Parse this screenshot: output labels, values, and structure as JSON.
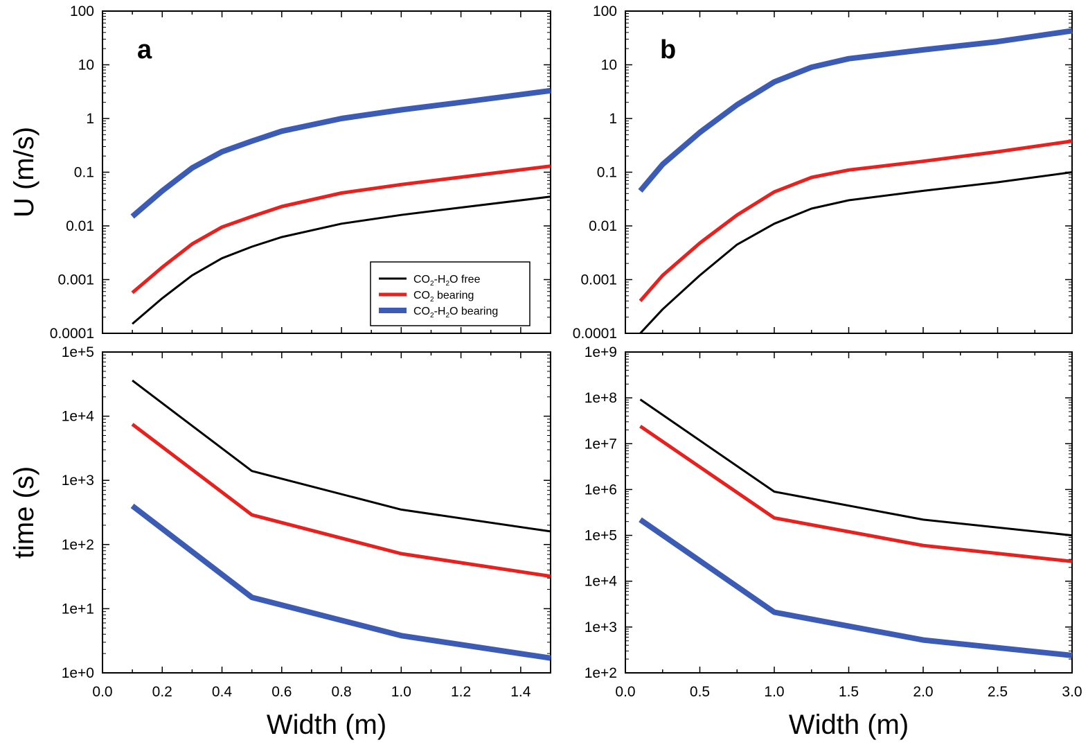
{
  "series_styles": {
    "free": {
      "label_parts": [
        [
          "CO",
          "2",
          "-H",
          "2",
          "O free"
        ]
      ],
      "color": "#000000",
      "width": 3
    },
    "co2": {
      "label_parts": [
        [
          "CO",
          "2",
          " bearing"
        ]
      ],
      "color": "#e8201e",
      "width": 5
    },
    "co2h2o": {
      "label_parts": [
        [
          "CO",
          "2",
          "-H",
          "2",
          "O bearing"
        ]
      ],
      "color": "#3b5bb5",
      "width": 8
    }
  },
  "legend": [
    {
      "key": "free",
      "text": [
        "CO",
        "2",
        "-H",
        "2",
        "O free"
      ]
    },
    {
      "key": "co2",
      "text": [
        "CO",
        "2",
        " bearing"
      ]
    },
    {
      "key": "co2h2o",
      "text": [
        "CO",
        "2",
        "-H",
        "2",
        "O bearing"
      ]
    }
  ],
  "chart_data": [
    {
      "panel": "a",
      "row": "top",
      "type": "line",
      "panel_letter": "a",
      "ylabel": "U (m/s)",
      "xlabel": "",
      "xlim": [
        0.0,
        1.5
      ],
      "ylim": [
        0.0001,
        100
      ],
      "yscale": "log",
      "xticks": [
        "0.0",
        "0.2",
        "0.4",
        "0.6",
        "0.8",
        "1.0",
        "1.2",
        "1.4"
      ],
      "yticks": [
        "0.0001",
        "0.001",
        "0.01",
        "0.1",
        "1",
        "10",
        "100"
      ],
      "series": [
        {
          "key": "free",
          "x": [
            0.1,
            0.2,
            0.3,
            0.4,
            0.5,
            0.6,
            0.8,
            1.0,
            1.2,
            1.5
          ],
          "y": [
            0.00015,
            0.00045,
            0.0012,
            0.0025,
            0.0041,
            0.0062,
            0.011,
            0.016,
            0.022,
            0.035
          ]
        },
        {
          "key": "co2",
          "x": [
            0.1,
            0.2,
            0.3,
            0.4,
            0.5,
            0.6,
            0.8,
            1.0,
            1.2,
            1.5
          ],
          "y": [
            0.00057,
            0.0017,
            0.0046,
            0.0095,
            0.015,
            0.023,
            0.041,
            0.059,
            0.081,
            0.13
          ]
        },
        {
          "key": "co2h2o",
          "x": [
            0.1,
            0.2,
            0.3,
            0.4,
            0.5,
            0.6,
            0.8,
            1.0,
            1.2,
            1.5
          ],
          "y": [
            0.015,
            0.045,
            0.12,
            0.24,
            0.38,
            0.58,
            1.0,
            1.45,
            2.0,
            3.3
          ]
        }
      ]
    },
    {
      "panel": "b",
      "row": "top",
      "type": "line",
      "panel_letter": "b",
      "ylabel": "",
      "xlabel": "",
      "xlim": [
        0.0,
        3.0
      ],
      "ylim": [
        0.0001,
        100
      ],
      "yscale": "log",
      "xticks": [
        "0.0",
        "0.5",
        "1.0",
        "1.5",
        "2.0",
        "2.5",
        "3.0"
      ],
      "yticks": [
        "0.0001",
        "0.001",
        "0.01",
        "0.1",
        "1",
        "10",
        "100"
      ],
      "series": [
        {
          "key": "free",
          "x": [
            0.1,
            0.25,
            0.5,
            0.75,
            1.0,
            1.25,
            1.5,
            2.0,
            2.5,
            3.0
          ],
          "y": [
            0.0001,
            0.00028,
            0.0012,
            0.0045,
            0.011,
            0.021,
            0.03,
            0.045,
            0.065,
            0.1
          ]
        },
        {
          "key": "co2",
          "x": [
            0.1,
            0.25,
            0.5,
            0.75,
            1.0,
            1.25,
            1.5,
            2.0,
            2.5,
            3.0
          ],
          "y": [
            0.0004,
            0.0012,
            0.0048,
            0.016,
            0.043,
            0.08,
            0.11,
            0.16,
            0.24,
            0.38
          ]
        },
        {
          "key": "co2h2o",
          "x": [
            0.1,
            0.25,
            0.5,
            0.75,
            1.0,
            1.25,
            1.5,
            2.0,
            2.5,
            3.0
          ],
          "y": [
            0.045,
            0.14,
            0.55,
            1.8,
            4.8,
            9.0,
            13,
            19,
            27,
            43
          ]
        }
      ]
    },
    {
      "panel": "a",
      "row": "bottom",
      "type": "line",
      "ylabel": "time (s)",
      "xlabel": "Width (m)",
      "xlim": [
        0.0,
        1.5
      ],
      "ylim": [
        1,
        100000
      ],
      "yscale": "log",
      "xticks": [
        "0.0",
        "0.2",
        "0.4",
        "0.6",
        "0.8",
        "1.0",
        "1.2",
        "1.4"
      ],
      "yticks": [
        "1e+0",
        "1e+1",
        "1e+2",
        "1e+3",
        "1e+4",
        "1e+5"
      ],
      "series": [
        {
          "key": "free",
          "x": [
            0.1,
            0.5,
            1.0,
            1.5
          ],
          "y": [
            36000,
            1400,
            350,
            160
          ]
        },
        {
          "key": "co2",
          "x": [
            0.1,
            0.5,
            1.0,
            1.5
          ],
          "y": [
            7500,
            290,
            72,
            32
          ]
        },
        {
          "key": "co2h2o",
          "x": [
            0.1,
            0.5,
            1.0,
            1.5
          ],
          "y": [
            400,
            15,
            3.8,
            1.7
          ]
        }
      ]
    },
    {
      "panel": "b",
      "row": "bottom",
      "type": "line",
      "ylabel": "",
      "xlabel": "Width (m)",
      "xlim": [
        0.0,
        3.0
      ],
      "ylim": [
        100,
        1000000000
      ],
      "yscale": "log",
      "xticks": [
        "0.0",
        "0.5",
        "1.0",
        "1.5",
        "2.0",
        "2.5",
        "3.0"
      ],
      "yticks": [
        "1e+2",
        "1e+3",
        "1e+4",
        "1e+5",
        "1e+6",
        "1e+7",
        "1e+8",
        "1e+9"
      ],
      "series": [
        {
          "key": "free",
          "x": [
            0.1,
            1.0,
            2.0,
            3.0
          ],
          "y": [
            92000000,
            900000,
            220000,
            100000
          ]
        },
        {
          "key": "co2",
          "x": [
            0.1,
            1.0,
            2.0,
            3.0
          ],
          "y": [
            24000000,
            240000,
            60000,
            27000
          ]
        },
        {
          "key": "co2h2o",
          "x": [
            0.1,
            1.0,
            2.0,
            3.0
          ],
          "y": [
            220000,
            2100,
            520,
            240
          ]
        }
      ]
    }
  ]
}
